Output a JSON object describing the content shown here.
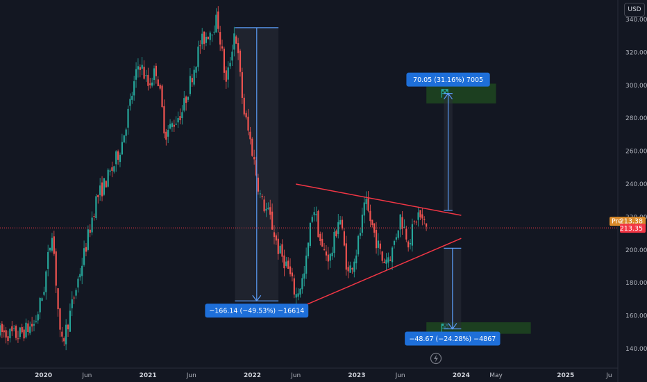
{
  "currency": "USD",
  "pre_market": {
    "label": "Pre",
    "price": "213.38"
  },
  "last_price": "213.35",
  "colors": {
    "background": "#131722",
    "up": "#26a69a",
    "down": "#ef5350",
    "trendline": "#f23645",
    "measure": "#5b9cf6",
    "target_zone": "#1e4620",
    "label_bg": "#1e6fd9",
    "pre_bg": "#d98a2b",
    "price_bg": "#f23645"
  },
  "chart_data": {
    "type": "candlestick",
    "y_axis": {
      "ticks": [
        140,
        160,
        180,
        200,
        220,
        240,
        260,
        280,
        300,
        320,
        340
      ],
      "tick_labels": [
        "140.00",
        "160.00",
        "180.00",
        "200.00",
        "220.00",
        "240.00",
        "260.00",
        "280.00",
        "300.00",
        "320.00",
        "340.00"
      ],
      "ylim": [
        129,
        351
      ]
    },
    "x_axis": {
      "labels": [
        "2020",
        "Jun",
        "2021",
        "Jun",
        "2022",
        "Jun",
        "2023",
        "Jun",
        "2024",
        "May",
        "2025",
        "Ju"
      ],
      "bold": [
        true,
        false,
        true,
        false,
        true,
        false,
        true,
        false,
        true,
        false,
        true,
        false
      ],
      "dates": [
        "2020-01",
        "2020-06",
        "2021-01",
        "2021-06",
        "2022-01",
        "2022-06",
        "2023-01",
        "2023-06",
        "2024-01",
        "2024-05",
        "2025-01",
        "2025-06"
      ],
      "xlim": [
        "2019-08",
        "2025-07"
      ]
    },
    "price_path": [
      [
        "2019-08",
        150
      ],
      [
        "2019-10",
        148
      ],
      [
        "2019-12",
        155
      ],
      [
        "2020-01",
        175
      ],
      [
        "2020-02",
        213
      ],
      [
        "2020-03",
        140
      ],
      [
        "2020-04",
        160
      ],
      [
        "2020-06",
        205
      ],
      [
        "2020-07",
        230
      ],
      [
        "2020-09",
        250
      ],
      [
        "2020-10",
        265
      ],
      [
        "2020-11",
        290
      ],
      [
        "2020-12",
        315
      ],
      [
        "2021-01",
        300
      ],
      [
        "2021-02",
        310
      ],
      [
        "2021-03",
        270
      ],
      [
        "2021-05",
        285
      ],
      [
        "2021-07",
        325
      ],
      [
        "2021-09",
        340
      ],
      [
        "2021-10",
        300
      ],
      [
        "2021-11",
        335
      ],
      [
        "2021-12",
        285
      ],
      [
        "2022-01",
        260
      ],
      [
        "2022-02",
        230
      ],
      [
        "2022-03",
        220
      ],
      [
        "2022-04",
        200
      ],
      [
        "2022-05",
        190
      ],
      [
        "2022-06",
        172
      ],
      [
        "2022-07",
        185
      ],
      [
        "2022-08",
        228
      ],
      [
        "2022-09",
        200
      ],
      [
        "2022-10",
        195
      ],
      [
        "2022-11",
        222
      ],
      [
        "2022-12",
        185
      ],
      [
        "2023-01",
        200
      ],
      [
        "2023-02",
        228
      ],
      [
        "2023-03",
        210
      ],
      [
        "2023-04",
        193
      ],
      [
        "2023-05",
        198
      ],
      [
        "2023-06",
        220
      ],
      [
        "2023-07",
        205
      ],
      [
        "2023-08",
        222
      ],
      [
        "2023-09",
        213.35
      ]
    ],
    "trendlines": [
      {
        "name": "upper",
        "from": [
          "2022-06",
          240
        ],
        "to": [
          "2024-01",
          221
        ]
      },
      {
        "name": "lower",
        "from": [
          "2022-06",
          164
        ],
        "to": [
          "2024-01",
          207
        ]
      }
    ],
    "measurements": [
      {
        "name": "drop",
        "from_date": "2021-11",
        "to_date": "2022-04",
        "from_price": 335,
        "to_price": 169,
        "label": "−166.14 (−49.53%) −16614",
        "label_position": "bottom"
      },
      {
        "name": "upside",
        "from_date": "2023-11",
        "to_date": "2023-12",
        "from_price": 224,
        "to_price": 295,
        "label": "70.05 (31.16%) 7005",
        "label_position": "top"
      },
      {
        "name": "downside",
        "from_date": "2023-11",
        "to_date": "2024-01",
        "from_price": 201,
        "to_price": 152,
        "label": "−48.67 (−24.28%) −4867",
        "label_position": "bottom"
      }
    ],
    "target_zones": [
      {
        "name": "upper-target",
        "x_from": "2023-09",
        "x_to": "2024-05",
        "y_from": 289,
        "y_to": 301
      },
      {
        "name": "lower-target",
        "x_from": "2023-09",
        "x_to": "2024-09",
        "y_from": 149,
        "y_to": 156
      }
    ],
    "current_price": 213.35,
    "grid": false
  }
}
